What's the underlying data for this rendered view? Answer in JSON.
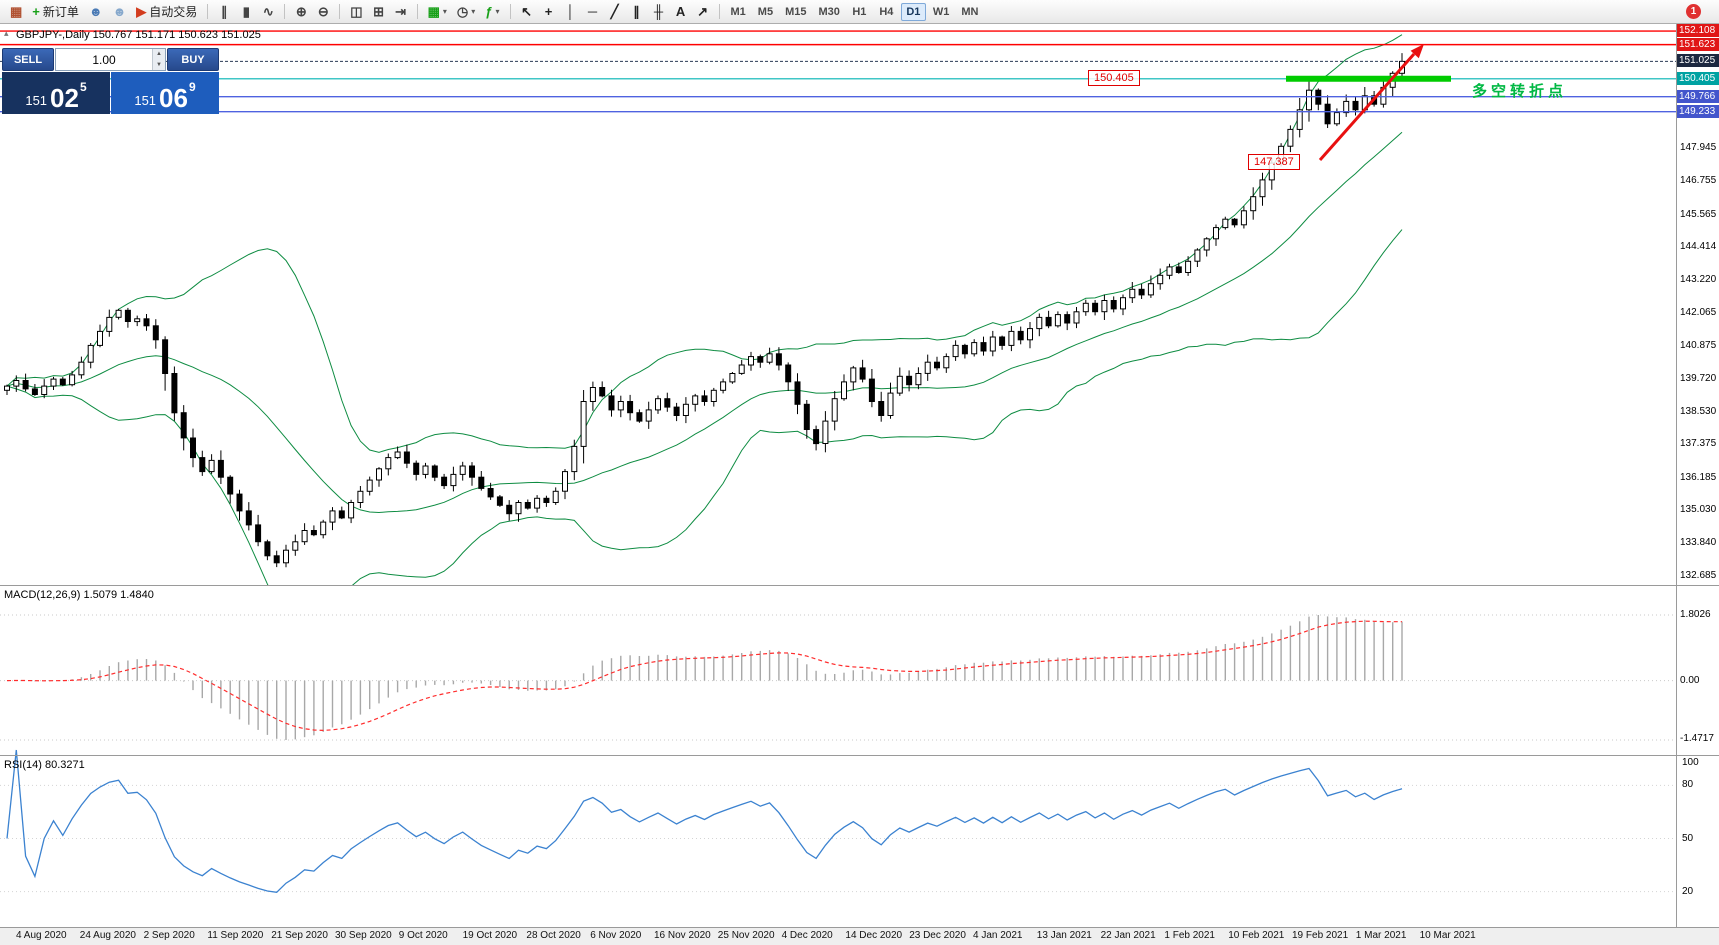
{
  "app": {
    "badge_count": "1"
  },
  "toolbar": {
    "buttons": [
      {
        "name": "chart-window-icon",
        "glyph": "▦",
        "color": "#b05030"
      },
      {
        "name": "new-order-button",
        "glyph": "+",
        "color": "#18a018",
        "label": "新订单"
      },
      {
        "name": "profile-icon",
        "glyph": "☻",
        "color": "#4a7ab5"
      },
      {
        "name": "community-icon",
        "glyph": "☻",
        "color": "#86a8cc"
      },
      {
        "name": "auto-trading-button",
        "glyph": "▶",
        "color": "#d23c1e",
        "label": "自动交易"
      },
      {
        "sep": true
      },
      {
        "name": "bar-chart-icon",
        "glyph": "∥",
        "color": "#444444"
      },
      {
        "name": "candlestick-icon",
        "glyph": "▮",
        "color": "#444444"
      },
      {
        "name": "line-chart-icon",
        "glyph": "∿",
        "color": "#444444"
      },
      {
        "sep": true
      },
      {
        "name": "zoom-in-icon",
        "glyph": "⊕",
        "color": "#444444"
      },
      {
        "name": "zoom-out-icon",
        "glyph": "⊖",
        "color": "#444444"
      },
      {
        "sep": true
      },
      {
        "name": "tile-windows-icon",
        "glyph": "◫",
        "color": "#444444"
      },
      {
        "name": "auto-arrange-icon",
        "glyph": "⊞",
        "color": "#444444"
      },
      {
        "name": "chart-shift-icon",
        "glyph": "⇥",
        "color": "#444444"
      },
      {
        "sep": true
      },
      {
        "name": "new-chart-button",
        "glyph": "▦",
        "color": "#18a018",
        "dropdown": true
      },
      {
        "name": "periodicity-button",
        "glyph": "◷",
        "color": "#444444",
        "dropdown": true
      },
      {
        "name": "indicators-button",
        "glyph": "ƒ",
        "color": "#18a018",
        "dropdown": true
      },
      {
        "sep": true
      },
      {
        "name": "cursor-tool",
        "glyph": "↖",
        "color": "#222222"
      },
      {
        "name": "crosshair-tool",
        "glyph": "+",
        "color": "#222222"
      },
      {
        "name": "vertical-line-tool",
        "glyph": "│",
        "color": "#222222"
      },
      {
        "name": "horizontal-line-tool",
        "glyph": "─",
        "color": "#222222"
      },
      {
        "name": "trendline-tool",
        "glyph": "╱",
        "color": "#222222"
      },
      {
        "name": "channel-tool",
        "glyph": "∥",
        "color": "#222222"
      },
      {
        "name": "fibonacci-tool",
        "glyph": "╫",
        "color": "#222222"
      },
      {
        "name": "text-tool",
        "glyph": "A",
        "color": "#222222"
      },
      {
        "name": "arrows-tool",
        "glyph": "↗",
        "color": "#222222"
      },
      {
        "sep": true
      }
    ],
    "timeframes": [
      "M1",
      "M5",
      "M15",
      "M30",
      "H1",
      "H4",
      "D1",
      "W1",
      "MN"
    ],
    "active_timeframe": "D1"
  },
  "trade_panel": {
    "sell_label": "SELL",
    "buy_label": "BUY",
    "volume": "1.00",
    "sell_big": "151",
    "sell_pips": "02",
    "sell_sup": "5",
    "buy_big": "151",
    "buy_pips": "06",
    "buy_sup": "9"
  },
  "chart": {
    "symbol_line": "GBPJPY-,Daily  150.767 151.171 150.623 151.025",
    "panel_toggle_glyph": "▴"
  },
  "annotations": {
    "level_box_1": "150.405",
    "level_box_2": "147.387",
    "note": "多空转折点"
  },
  "indicators": {
    "macd": {
      "label": "MACD(12,26,9) 1.5079 1.4840"
    },
    "rsi": {
      "label": "RSI(14) 80.3271"
    }
  },
  "chart_data": {
    "type": "candlestick",
    "symbol": "GBPJPY-",
    "period": "Daily",
    "last_ohlc": {
      "open": 150.767,
      "high": 151.171,
      "low": 150.623,
      "close": 151.025
    },
    "last_close": 151.025,
    "closes": [
      139.45,
      139.65,
      139.35,
      139.15,
      139.45,
      139.7,
      139.5,
      139.85,
      140.3,
      140.9,
      141.4,
      141.9,
      142.15,
      141.75,
      141.85,
      141.6,
      141.1,
      139.9,
      138.5,
      137.6,
      136.9,
      136.4,
      136.8,
      136.2,
      135.6,
      135.0,
      134.5,
      133.9,
      133.4,
      133.15,
      133.6,
      133.9,
      134.3,
      134.15,
      134.6,
      135.0,
      134.75,
      135.3,
      135.7,
      136.1,
      136.5,
      136.9,
      137.1,
      136.7,
      136.3,
      136.6,
      136.2,
      135.9,
      136.3,
      136.6,
      136.2,
      135.8,
      135.5,
      135.2,
      134.9,
      135.3,
      135.1,
      135.45,
      135.3,
      135.7,
      136.4,
      137.3,
      138.9,
      139.4,
      139.1,
      138.6,
      138.9,
      138.5,
      138.2,
      138.6,
      139.0,
      138.7,
      138.4,
      138.8,
      139.1,
      138.9,
      139.3,
      139.6,
      139.9,
      140.2,
      140.5,
      140.3,
      140.6,
      140.2,
      139.6,
      138.8,
      137.9,
      137.4,
      138.2,
      139.0,
      139.6,
      140.1,
      139.7,
      138.9,
      138.4,
      139.2,
      139.8,
      139.5,
      139.9,
      140.3,
      140.1,
      140.5,
      140.9,
      140.6,
      141.0,
      140.7,
      141.2,
      140.9,
      141.4,
      141.1,
      141.5,
      141.9,
      141.6,
      142.0,
      141.7,
      142.1,
      142.4,
      142.1,
      142.5,
      142.2,
      142.6,
      142.9,
      142.7,
      143.1,
      143.4,
      143.7,
      143.5,
      143.9,
      144.3,
      144.7,
      145.1,
      145.4,
      145.2,
      145.7,
      146.2,
      146.8,
      147.4,
      148.0,
      148.6,
      149.3,
      150.0,
      149.5,
      148.8,
      149.2,
      149.6,
      149.3,
      149.8,
      149.5,
      150.1,
      150.6,
      151.025
    ],
    "x_dates": [
      "4 Aug 2020",
      "24 Aug 2020",
      "2 Sep 2020",
      "11 Sep 2020",
      "21 Sep 2020",
      "30 Sep 2020",
      "9 Oct 2020",
      "19 Oct 2020",
      "28 Oct 2020",
      "6 Nov 2020",
      "16 Nov 2020",
      "25 Nov 2020",
      "4 Dec 2020",
      "14 Dec 2020",
      "23 Dec 2020",
      "4 Jan 2021",
      "13 Jan 2021",
      "22 Jan 2021",
      "1 Feb 2021",
      "10 Feb 2021",
      "19 Feb 2021",
      "1 Mar 2021",
      "10 Mar 2021"
    ],
    "y_axis_labels": [
      "147.945",
      "146.755",
      "145.565",
      "144.414",
      "143.220",
      "142.065",
      "140.875",
      "139.720",
      "138.530",
      "137.375",
      "136.185",
      "135.030",
      "133.840",
      "132.685"
    ],
    "price_tags": [
      {
        "text": "152.108",
        "price": 152.108,
        "bg": "#e01616"
      },
      {
        "text": "151.623",
        "price": 151.623,
        "bg": "#e01616"
      },
      {
        "text": "151.025",
        "price": 151.025,
        "bg": "#1c2840"
      },
      {
        "text": "150.405",
        "price": 150.405,
        "bg": "#00a2a2"
      },
      {
        "text": "149.766",
        "price": 149.766,
        "bg": "#4355cc"
      },
      {
        "text": "149.233",
        "price": 149.233,
        "bg": "#4355cc"
      }
    ],
    "horizontal_lines": [
      {
        "price": 152.108,
        "color": "#ff0000",
        "width": 1.4
      },
      {
        "price": 151.623,
        "color": "#ff0000",
        "width": 1.4
      },
      {
        "price": 150.405,
        "color": "#00b4b4",
        "width": 1.2
      },
      {
        "price": 149.766,
        "color": "#4f62e0",
        "width": 1.4
      },
      {
        "price": 149.233,
        "color": "#4f62e0",
        "width": 1.4
      }
    ],
    "trend_segment_price": 150.405,
    "bollinger_period": 20,
    "indicators": [
      {
        "name": "MACD",
        "params": [
          12,
          26,
          9
        ],
        "current": "1.5079 1.4840",
        "scale": [
          "1.8026",
          "0.00",
          "-1.4717"
        ]
      },
      {
        "name": "RSI",
        "params": [
          14
        ],
        "current": "80.3271",
        "scale": [
          "100",
          "80",
          "50",
          "20"
        ]
      }
    ],
    "colors": {
      "bands": "#0e8c42",
      "segment": "#00cc00",
      "arrow": "#e81010",
      "rsi": "#3b82d0",
      "macd_hist": "#a8a8a8",
      "macd_signal": "#ff2d2d"
    }
  }
}
